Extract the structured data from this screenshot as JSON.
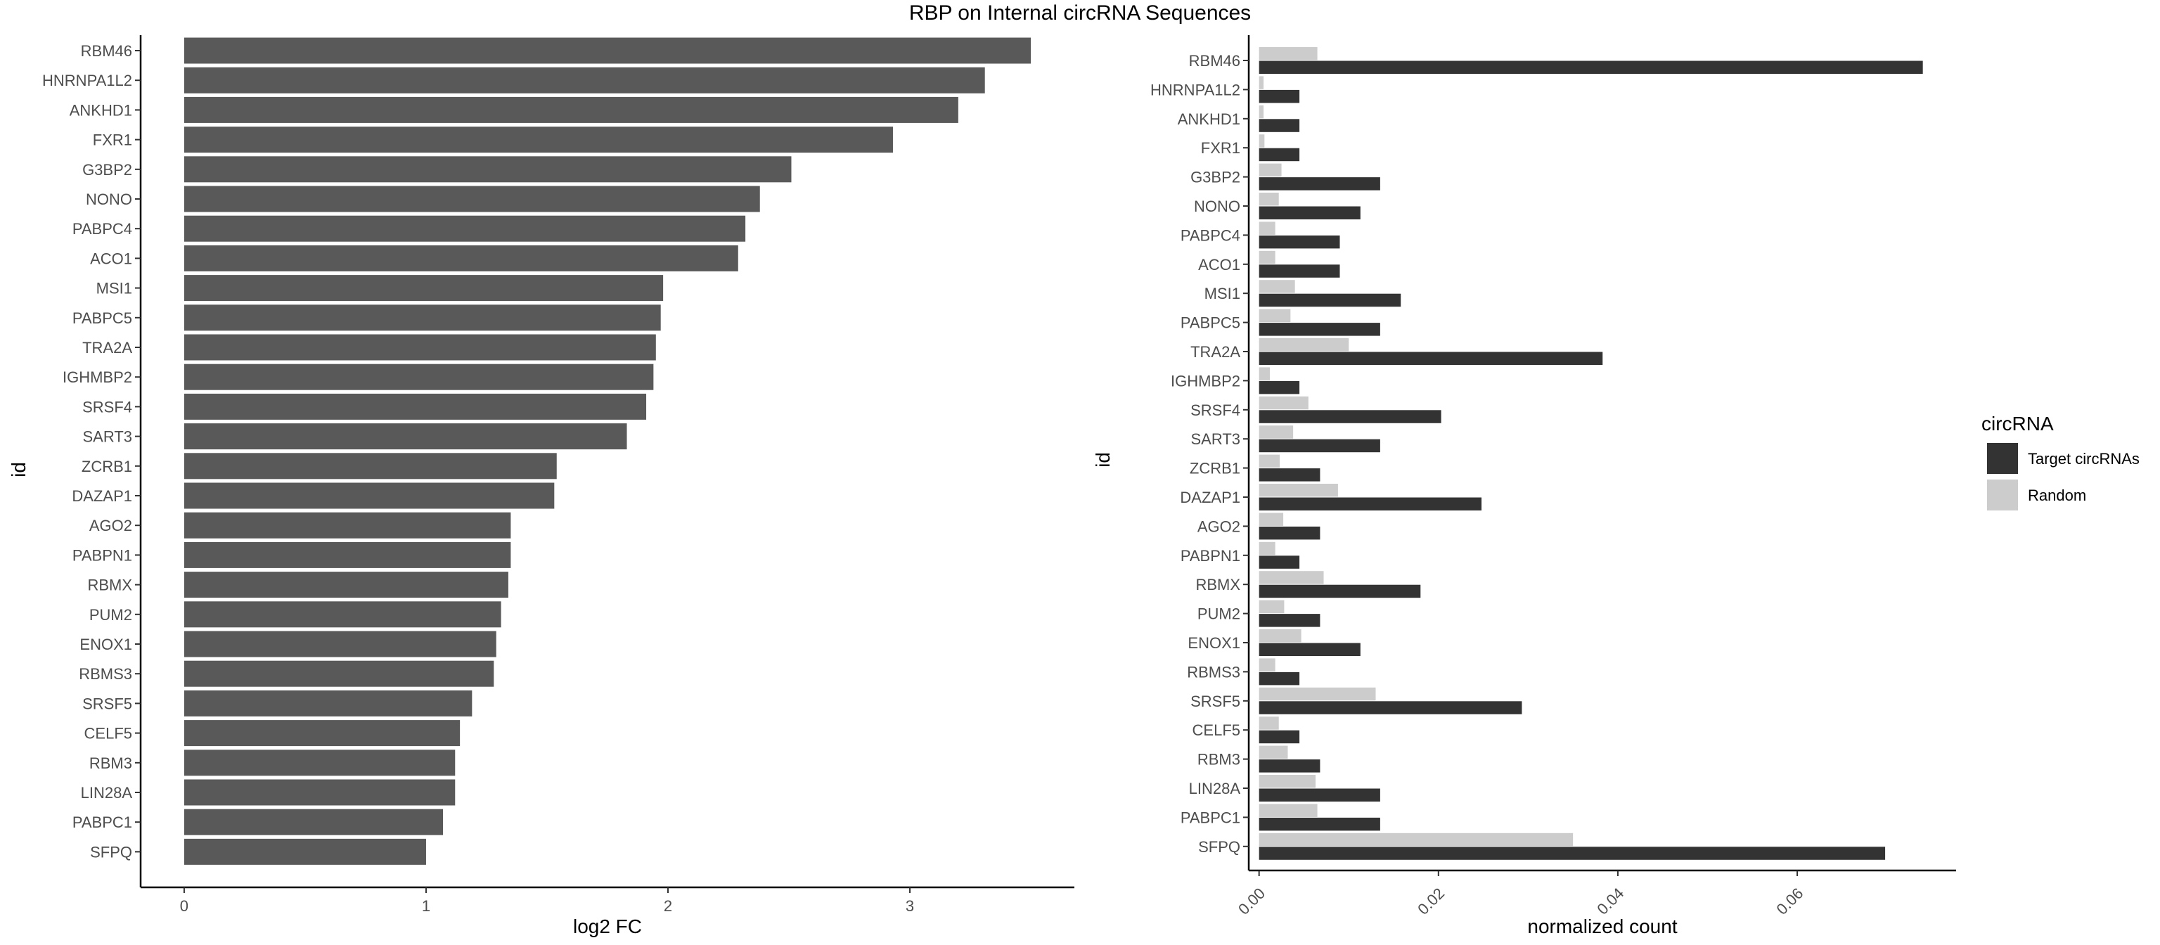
{
  "title": "RBP on Internal circRNA Sequences",
  "chart_data": [
    {
      "type": "bar",
      "orientation": "horizontal",
      "categories": [
        "RBM46",
        "HNRNPA1L2",
        "ANKHD1",
        "FXR1",
        "G3BP2",
        "NONO",
        "PABPC4",
        "ACO1",
        "MSI1",
        "PABPC5",
        "TRA2A",
        "IGHMBP2",
        "SRSF4",
        "SART3",
        "ZCRB1",
        "DAZAP1",
        "AGO2",
        "PABPN1",
        "RBMX",
        "PUM2",
        "ENOX1",
        "RBMS3",
        "SRSF5",
        "CELF5",
        "RBM3",
        "LIN28A",
        "PABPC1",
        "SFPQ"
      ],
      "values": [
        3.5,
        3.31,
        3.2,
        2.93,
        2.51,
        2.38,
        2.32,
        2.29,
        1.98,
        1.97,
        1.95,
        1.94,
        1.91,
        1.83,
        1.54,
        1.53,
        1.35,
        1.35,
        1.34,
        1.31,
        1.29,
        1.28,
        1.19,
        1.14,
        1.12,
        1.12,
        1.07,
        1.0
      ],
      "xlabel": "log2 FC",
      "ylabel": "id",
      "xlim": [
        -0.18,
        3.68
      ],
      "xticks": [
        "0",
        "1",
        "2",
        "3"
      ],
      "bar_color": "#595959",
      "grid": false
    },
    {
      "type": "bar",
      "orientation": "horizontal",
      "grouped": true,
      "categories": [
        "RBM46",
        "HNRNPA1L2",
        "ANKHD1",
        "FXR1",
        "G3BP2",
        "NONO",
        "PABPC4",
        "ACO1",
        "MSI1",
        "PABPC5",
        "TRA2A",
        "IGHMBP2",
        "SRSF4",
        "SART3",
        "ZCRB1",
        "DAZAP1",
        "AGO2",
        "PABPN1",
        "RBMX",
        "PUM2",
        "ENOX1",
        "RBMS3",
        "SRSF5",
        "CELF5",
        "RBM3",
        "LIN28A",
        "PABPC1",
        "SFPQ"
      ],
      "series": [
        {
          "name": "Target circRNAs",
          "color": "#333333",
          "values": [
            0.074,
            0.0045,
            0.0045,
            0.0045,
            0.0135,
            0.0113,
            0.009,
            0.009,
            0.0158,
            0.0135,
            0.0383,
            0.0045,
            0.0203,
            0.0135,
            0.0068,
            0.0248,
            0.0068,
            0.0045,
            0.018,
            0.0068,
            0.0113,
            0.0045,
            0.0293,
            0.0045,
            0.0068,
            0.0135,
            0.0135,
            0.0698
          ]
        },
        {
          "name": "Random",
          "color": "#cccccc",
          "values": [
            0.0065,
            0.0005,
            0.0005,
            0.0006,
            0.0025,
            0.0022,
            0.0018,
            0.0018,
            0.004,
            0.0035,
            0.01,
            0.0012,
            0.0055,
            0.0038,
            0.0023,
            0.0088,
            0.0027,
            0.0018,
            0.0072,
            0.0028,
            0.0047,
            0.0018,
            0.013,
            0.0022,
            0.0032,
            0.0063,
            0.0065,
            0.035
          ]
        }
      ],
      "xlabel": "normalized count",
      "ylabel": "id",
      "xlim": [
        -0.00115,
        0.07771
      ],
      "xticks": [
        "0.00",
        "0.02",
        "0.04",
        "0.06"
      ],
      "grid": false,
      "legend": {
        "title": "circRNA",
        "position": "right"
      }
    }
  ]
}
